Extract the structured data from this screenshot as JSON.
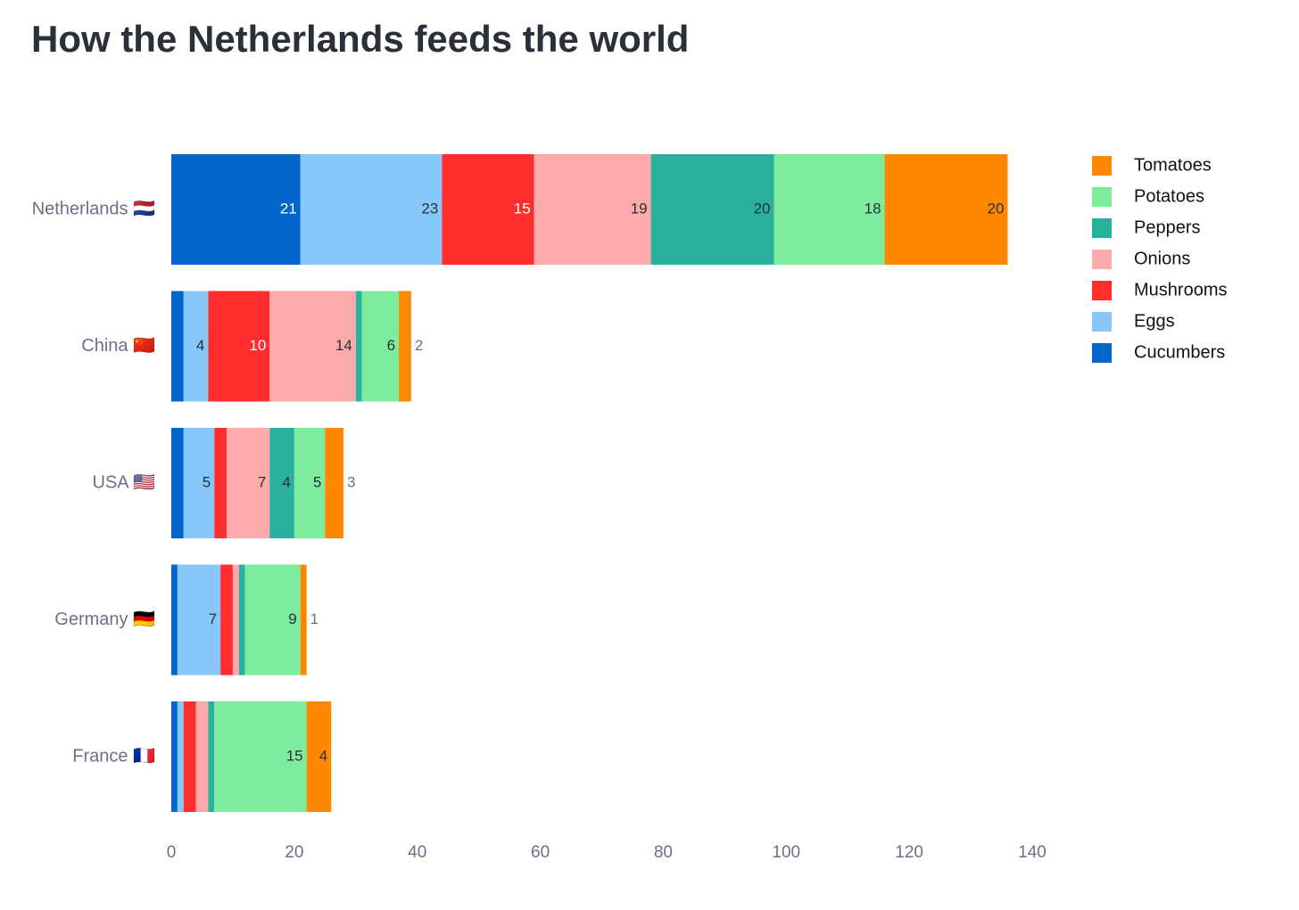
{
  "chart_data": {
    "type": "stacked-barh",
    "title": "How the Netherlands feeds the world",
    "categories": [
      "Netherlands 🇳🇱",
      "China 🇨🇳",
      "USA 🇺🇸",
      "Germany 🇩🇪",
      "France 🇫🇷"
    ],
    "series": [
      {
        "name": "Cucumbers",
        "color": "#0066cc",
        "values": [
          21,
          2,
          2,
          1,
          1
        ]
      },
      {
        "name": "Eggs",
        "color": "#87c8fc",
        "values": [
          23,
          4,
          5,
          7,
          1
        ]
      },
      {
        "name": "Mushrooms",
        "color": "#ff2d2d",
        "values": [
          15,
          10,
          2,
          2,
          2
        ]
      },
      {
        "name": "Onions",
        "color": "#ffaaaa",
        "values": [
          19,
          14,
          7,
          1,
          2
        ]
      },
      {
        "name": "Peppers",
        "color": "#2ab09f",
        "values": [
          20,
          1,
          4,
          1,
          1
        ]
      },
      {
        "name": "Potatoes",
        "color": "#7dec9c",
        "values": [
          18,
          6,
          5,
          9,
          15
        ]
      },
      {
        "name": "Tomatoes",
        "color": "#ff8800",
        "values": [
          20,
          2,
          3,
          1,
          4
        ]
      }
    ],
    "xlim": [
      0,
      140
    ],
    "xticks": [
      0,
      20,
      40,
      60,
      80,
      100,
      120,
      140
    ],
    "grid": false,
    "legend": "right"
  }
}
